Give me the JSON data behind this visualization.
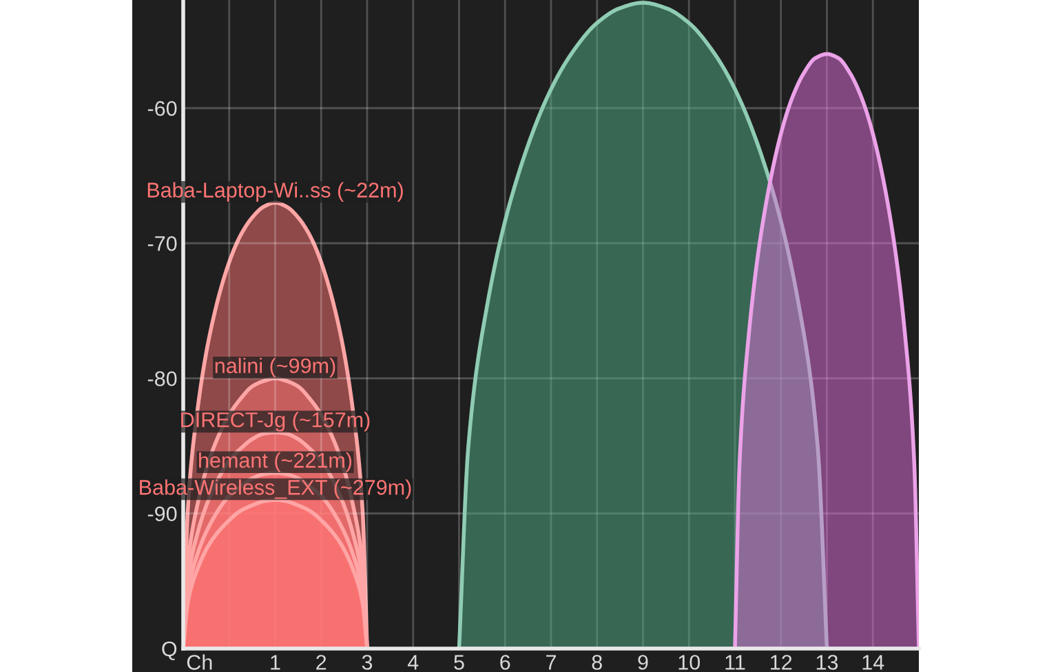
{
  "chart_data": {
    "type": "area",
    "xlabel": "Ch",
    "xlim": [
      -1,
      15
    ],
    "xticks": [
      {
        "value": 0,
        "label": null
      },
      1,
      2,
      3,
      4,
      5,
      6,
      7,
      8,
      9,
      10,
      11,
      12,
      13,
      14
    ],
    "ylim": [
      -100,
      -52
    ],
    "yticks": [
      {
        "value": -100,
        "label": "Q"
      },
      -90,
      -80,
      -70,
      -60
    ],
    "grid": true,
    "series": [
      {
        "name": "Baba-Laptop-Wi..ss (~22m)",
        "color": "#ff7474",
        "x": [
          -1,
          -0.9,
          -0.7,
          -0.4,
          0,
          0.25,
          0.5,
          0.75,
          1,
          1.25,
          1.5,
          1.75,
          2,
          2.4,
          2.7,
          2.9,
          3
        ],
        "values": [
          -100,
          -89.7,
          -82.6,
          -76.4,
          -71.4,
          -69.4,
          -68.1,
          -67.3,
          -67,
          -67.3,
          -68.1,
          -69.4,
          -71.4,
          -76.4,
          -82.6,
          -89.7,
          -100
        ]
      },
      {
        "name": "nalini (~99m)",
        "color": "#ff7474",
        "x": [
          -1,
          -0.9,
          -0.7,
          -0.4,
          0,
          0.25,
          0.5,
          0.75,
          1,
          1.25,
          1.5,
          1.75,
          2,
          2.4,
          2.7,
          2.9,
          3
        ],
        "values": [
          -100,
          -93.8,
          -89.5,
          -85.7,
          -82.7,
          -81.5,
          -80.6,
          -80.2,
          -80,
          -80.2,
          -80.6,
          -81.5,
          -82.7,
          -85.7,
          -89.5,
          -93.8,
          -100
        ]
      },
      {
        "name": "DIRECT-Jg (~157m)",
        "color": "#ff7474",
        "x": [
          -1,
          -0.9,
          -0.7,
          -0.4,
          0,
          0.25,
          0.5,
          0.75,
          1,
          1.25,
          1.5,
          1.75,
          2,
          2.4,
          2.7,
          2.9,
          3
        ],
        "values": [
          -100,
          -95,
          -91.6,
          -88.6,
          -86.1,
          -85.2,
          -84.5,
          -84.1,
          -84,
          -84.1,
          -84.5,
          -85.2,
          -86.1,
          -88.6,
          -91.6,
          -95,
          -100
        ]
      },
      {
        "name": "hemant (~221m)",
        "color": "#ff7474",
        "x": [
          -1,
          -0.9,
          -0.7,
          -0.4,
          0,
          0.25,
          0.5,
          0.75,
          1,
          1.25,
          1.5,
          1.75,
          2,
          2.4,
          2.7,
          2.9,
          3
        ],
        "values": [
          -100,
          -95.9,
          -93.1,
          -90.7,
          -88.7,
          -88,
          -87.4,
          -87.1,
          -87,
          -87.1,
          -87.4,
          -88,
          -88.7,
          -90.7,
          -93.1,
          -95.9,
          -100
        ]
      },
      {
        "name": "Baba-Wireless_EXT (~279m)",
        "color": "#ff7474",
        "x": [
          -1,
          -0.9,
          -0.7,
          -0.4,
          0,
          0.25,
          0.5,
          0.75,
          1,
          1.25,
          1.5,
          1.75,
          2,
          2.4,
          2.7,
          2.9,
          3
        ],
        "values": [
          -100,
          -96.6,
          -94.2,
          -92.1,
          -90.5,
          -89.8,
          -89.4,
          -89.1,
          -89,
          -89.1,
          -89.4,
          -89.8,
          -90.5,
          -92.1,
          -94.2,
          -96.6,
          -100
        ]
      },
      {
        "color": "#52b08a",
        "x": [
          5,
          5.2,
          5.6,
          6.2,
          7,
          7.5,
          8,
          8.5,
          9,
          9.5,
          10,
          10.5,
          11,
          11.8,
          12.4,
          12.8,
          13
        ],
        "values": [
          -100,
          -85.1,
          -74.8,
          -65.9,
          -58.6,
          -55.7,
          -53.7,
          -52.6,
          -52.2,
          -52.6,
          -53.7,
          -55.7,
          -58.6,
          -65.9,
          -74.8,
          -85.1,
          -100
        ]
      },
      {
        "color": "#e070dc",
        "x": [
          11,
          11.1,
          11.3,
          11.6,
          12,
          12.25,
          12.5,
          12.75,
          13,
          13.25,
          13.5,
          13.75,
          14,
          14.4,
          14.7,
          14.9,
          15
        ],
        "values": [
          -100,
          -86.3,
          -76.8,
          -68.6,
          -61.9,
          -59.2,
          -57.4,
          -56.3,
          -56,
          -56.3,
          -57.4,
          -59.2,
          -61.9,
          -68.6,
          -76.8,
          -86.3,
          -100
        ]
      }
    ]
  }
}
